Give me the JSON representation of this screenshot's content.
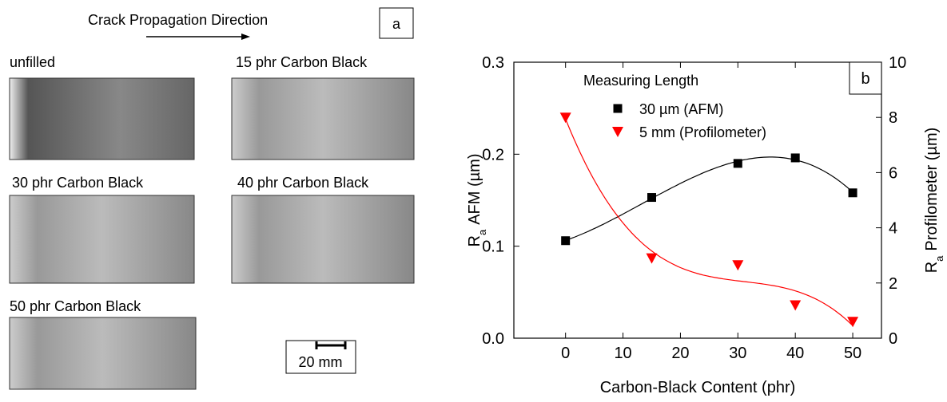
{
  "panel_a": {
    "label": "a",
    "direction": "Crack Propagation Direction",
    "images": [
      "unfilled",
      "15 phr Carbon Black",
      "30 phr Carbon Black",
      "40 phr Carbon Black",
      "50 phr Carbon Black"
    ],
    "scale_bar": "20 mm"
  },
  "chart_data": {
    "type": "scatter",
    "panel_label": "b",
    "xlabel": "Carbon-Black Content (phr)",
    "ylabel_symbol": "R",
    "ylabel_subscript": "a",
    "ylabel": "AFM (µm)",
    "y2label": "Profilometer (µm)",
    "legend_title": "Measuring Length",
    "xlim": [
      -9,
      55
    ],
    "xticks": [
      0,
      10,
      20,
      30,
      40,
      50
    ],
    "ylim": [
      0,
      0.3
    ],
    "yticks": [
      {
        "value": 0,
        "label": "0.0"
      },
      0.1,
      0.2,
      0.3
    ],
    "y2lim": [
      0,
      10
    ],
    "y2ticks": [
      0,
      2,
      4,
      6,
      8,
      10
    ],
    "fit_curves": true,
    "series": [
      {
        "name": "30 µm (AFM)",
        "color": "#000000",
        "marker": "square",
        "x": [
          0,
          15,
          30,
          40,
          50
        ],
        "values": [
          0.106,
          0.153,
          0.19,
          0.196,
          0.158
        ]
      },
      {
        "name": "5 mm (Profilometer)",
        "color": "#ff0000",
        "marker": "triangle",
        "axis": "y2",
        "x": [
          0,
          15,
          30,
          40,
          50
        ],
        "values": [
          8.0,
          2.9,
          2.65,
          1.2,
          0.6
        ]
      }
    ]
  }
}
